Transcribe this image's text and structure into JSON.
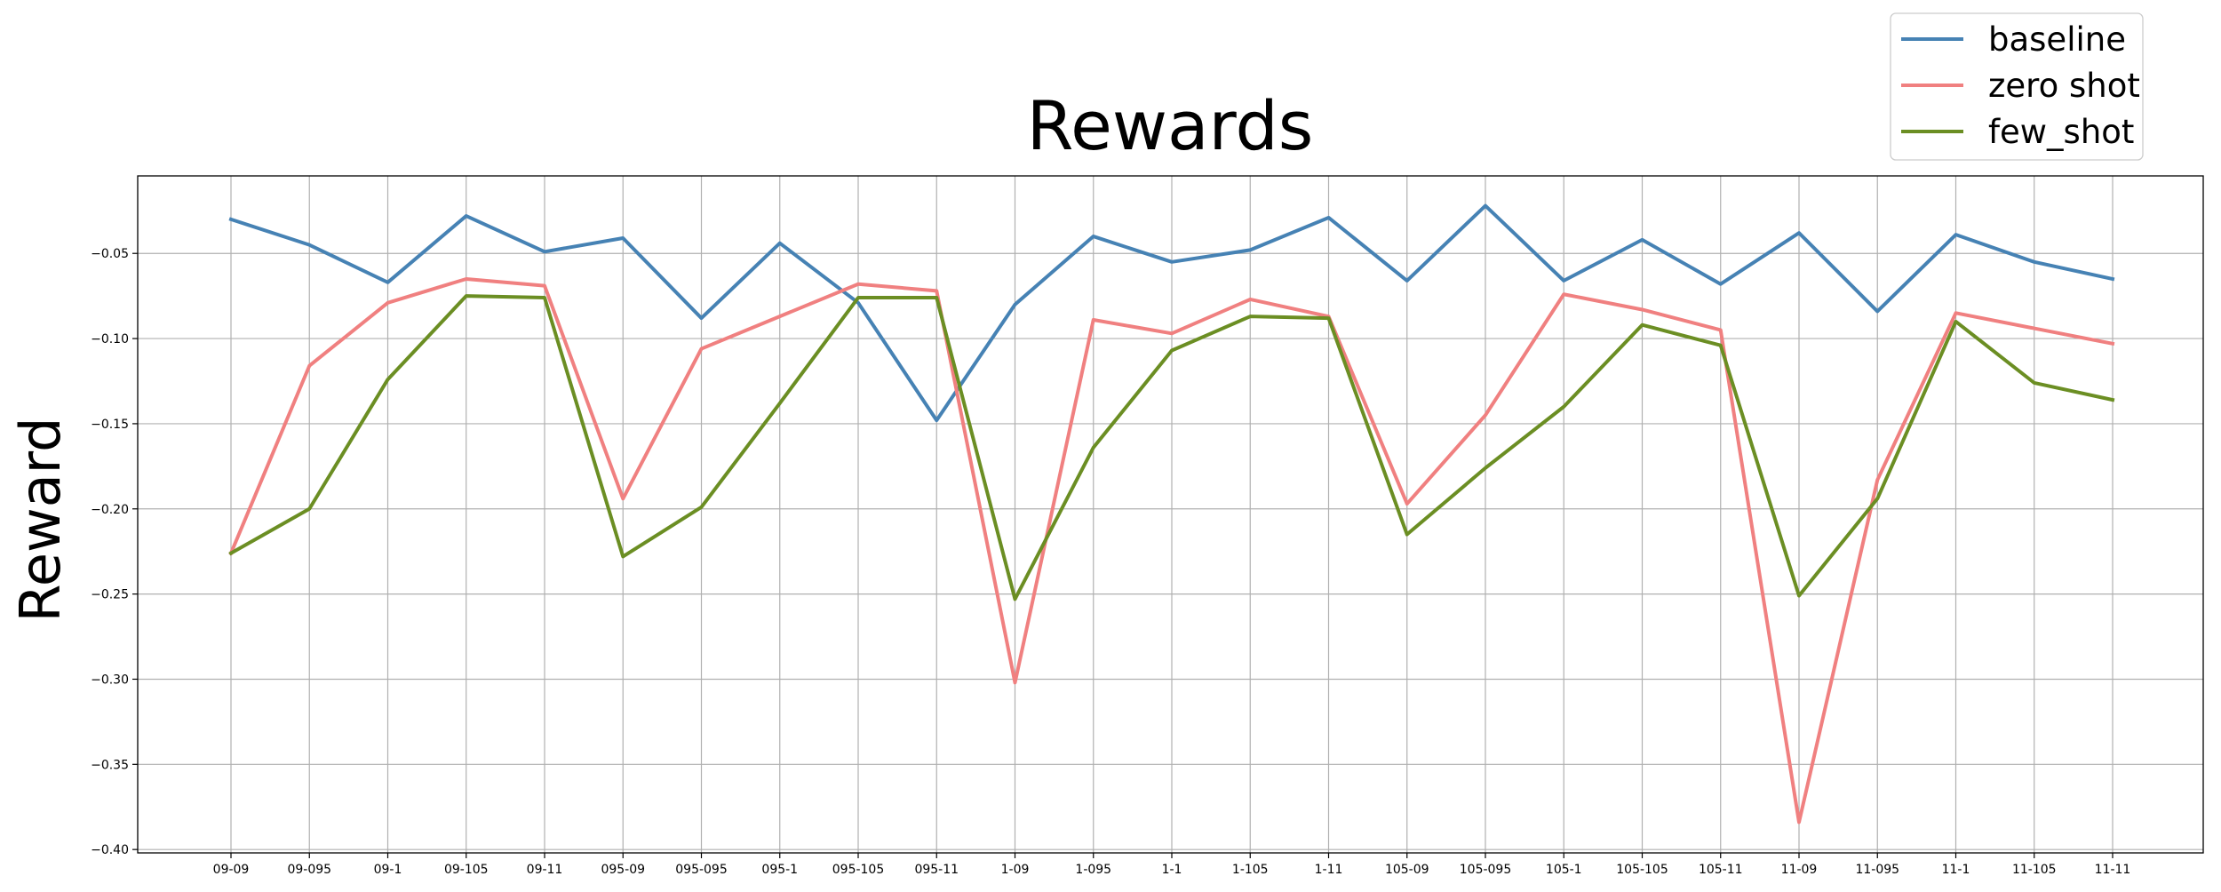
{
  "chart_data": {
    "type": "line",
    "title": "Rewards",
    "xlabel": "",
    "ylabel": "Reward",
    "categories": [
      "09-09",
      "09-095",
      "09-1",
      "09-105",
      "09-11",
      "095-09",
      "095-095",
      "095-1",
      "095-105",
      "095-11",
      "1-09",
      "1-095",
      "1-1",
      "1-105",
      "1-11",
      "105-09",
      "105-095",
      "105-1",
      "105-105",
      "105-11",
      "11-09",
      "11-095",
      "11-1",
      "11-105",
      "11-11"
    ],
    "ylim": [
      -0.402,
      -0.0045
    ],
    "yticks": [
      -0.4,
      -0.35,
      -0.3,
      -0.25,
      -0.2,
      -0.15,
      -0.1,
      -0.05
    ],
    "ytick_labels": [
      "−0.40",
      "−0.35",
      "−0.30",
      "−0.25",
      "−0.20",
      "−0.15",
      "−0.10",
      "−0.05"
    ],
    "grid": true,
    "legend_position": "top-right",
    "series": [
      {
        "name": "baseline",
        "color": "#4682b4",
        "values": [
          -0.03,
          -0.045,
          -0.067,
          -0.028,
          -0.049,
          -0.041,
          -0.088,
          -0.044,
          -0.079,
          -0.148,
          -0.08,
          -0.04,
          -0.055,
          -0.048,
          -0.029,
          -0.066,
          -0.022,
          -0.066,
          -0.042,
          -0.068,
          -0.038,
          -0.084,
          -0.039,
          -0.055,
          -0.065
        ]
      },
      {
        "name": "zero shot",
        "color": "#f08080",
        "values": [
          -0.226,
          -0.116,
          -0.079,
          -0.065,
          -0.069,
          -0.194,
          -0.106,
          -0.087,
          -0.068,
          -0.072,
          -0.302,
          -0.089,
          -0.097,
          -0.077,
          -0.087,
          -0.197,
          -0.145,
          -0.074,
          -0.083,
          -0.095,
          -0.384,
          -0.183,
          -0.085,
          -0.094,
          -0.103
        ]
      },
      {
        "name": "few_shot",
        "color": "#6b8e23",
        "values": [
          -0.226,
          -0.2,
          -0.124,
          -0.075,
          -0.076,
          -0.228,
          -0.199,
          -0.138,
          -0.076,
          -0.076,
          -0.253,
          -0.164,
          -0.107,
          -0.087,
          -0.088,
          -0.215,
          -0.176,
          -0.14,
          -0.092,
          -0.104,
          -0.251,
          -0.194,
          -0.09,
          -0.126,
          -0.136
        ]
      }
    ]
  }
}
